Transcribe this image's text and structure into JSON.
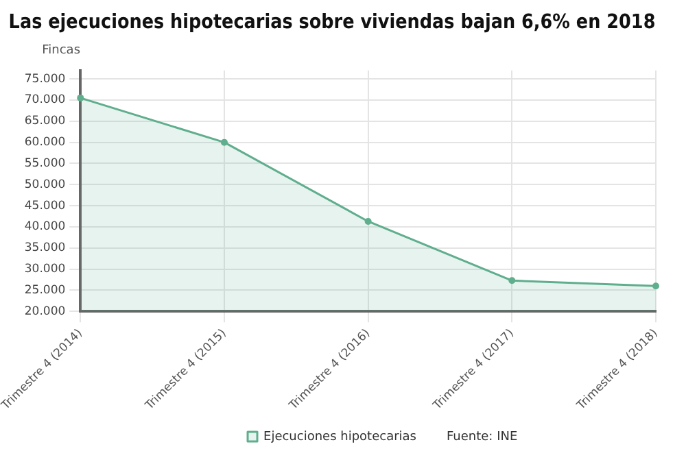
{
  "chart_data": {
    "type": "area",
    "title": "Las ejecuciones hipotecarias sobre viviendas bajan 6,6% en 2018",
    "ylabel": "Fincas",
    "categories": [
      "Trimestre 4 (2014)",
      "Trimestre 4 (2015)",
      "Trimestre 4 (2016)",
      "Trimestre 4 (2017)",
      "Trimestre 4 (2018)"
    ],
    "series": [
      {
        "name": "Ejecuciones hipotecarias",
        "color": "#5fae8e",
        "values": [
          70500,
          60000,
          41300,
          27300,
          26000
        ]
      }
    ],
    "ylim": [
      20000,
      77000
    ],
    "yticks": [
      {
        "value": 20000,
        "label": "20.000"
      },
      {
        "value": 25000,
        "label": "25.000"
      },
      {
        "value": 30000,
        "label": "30.000"
      },
      {
        "value": 35000,
        "label": "35.000"
      },
      {
        "value": 40000,
        "label": "40.000"
      },
      {
        "value": 45000,
        "label": "45.000"
      },
      {
        "value": 50000,
        "label": "50.000"
      },
      {
        "value": 55000,
        "label": "55.000"
      },
      {
        "value": 60000,
        "label": "60.000"
      },
      {
        "value": 65000,
        "label": "65.000"
      },
      {
        "value": 70000,
        "label": "70.000"
      },
      {
        "value": 75000,
        "label": "75.000"
      }
    ],
    "grid": true,
    "legend": "bottom",
    "marker": "circle",
    "line_style": "solid",
    "annotations": [
      "Fuente: INE"
    ]
  }
}
